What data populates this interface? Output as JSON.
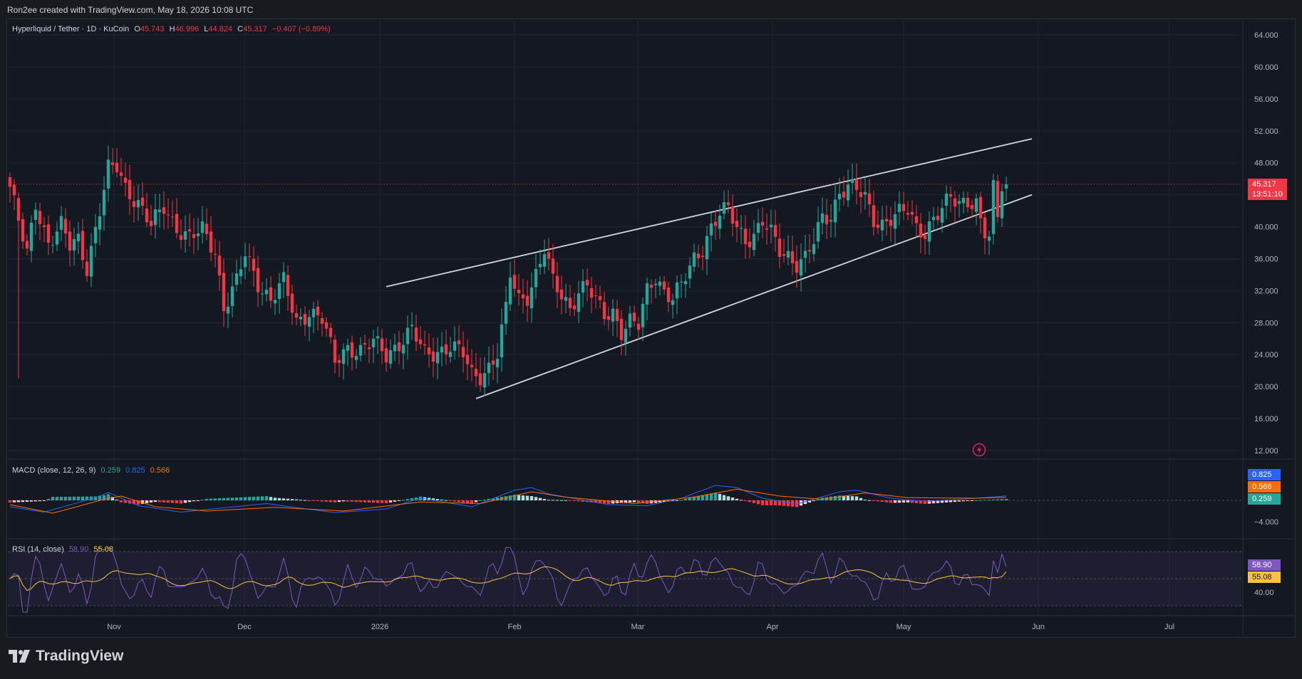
{
  "header": {
    "credit": "Ron2ee created with TradingView.com, May 18, 2026 10:08 UTC"
  },
  "legend": {
    "symbol": "Hyperliquid / Tether · 1D · KuCoin",
    "o_label": "O",
    "o_value": "45.743",
    "h_label": "H",
    "h_value": "46.996",
    "l_label": "L",
    "l_value": "44.824",
    "c_label": "C",
    "c_value": "45.317",
    "change": "−0.407 (−0.89%)"
  },
  "price_tag": {
    "price": "45.317",
    "countdown": "13:51:10"
  },
  "macd": {
    "title": "MACD (close, 12, 26, 9)",
    "hist": "0.259",
    "macd": "0.825",
    "signal": "0.566",
    "axis_label": "−4.000"
  },
  "rsi": {
    "title": "RSI (14, close)",
    "rsi": "58.90",
    "ma": "55.08",
    "axis_label": "40.00"
  },
  "brand": {
    "name": "TradingView"
  },
  "colors": {
    "up": "#26a69a",
    "down": "#f23645",
    "macd": "#2962ff",
    "signal": "#ff6d00",
    "rsi": "#7e57c2",
    "rsi_ma": "#f9c23c",
    "trendline": "#d1d4dc"
  },
  "chart_data": [
    {
      "type": "candlestick",
      "title": "Hyperliquid / Tether · 1D · KuCoin",
      "y_ticks": [
        "64.000",
        "60.000",
        "56.000",
        "52.000",
        "48.000",
        "44.000",
        "40.000",
        "36.000",
        "32.000",
        "28.000",
        "24.000",
        "20.000",
        "16.000",
        "12.000"
      ],
      "ylim": [
        12,
        64
      ],
      "x_ticks": [
        "Nov",
        "Dec",
        "2026",
        "Feb",
        "Mar",
        "Apr",
        "May",
        "Jun",
        "Jul"
      ],
      "anchors_close": [
        [
          0,
          45.0
        ],
        [
          2,
          40.5
        ],
        [
          4,
          36.5
        ],
        [
          6,
          43.0
        ],
        [
          9,
          38.0
        ],
        [
          12,
          40.0
        ],
        [
          14,
          37.5
        ],
        [
          16,
          38.5
        ],
        [
          18,
          35.0
        ],
        [
          21,
          42.0
        ],
        [
          23,
          47.0
        ],
        [
          25,
          47.5
        ],
        [
          27,
          45.0
        ],
        [
          30,
          43.0
        ],
        [
          33,
          40.0
        ],
        [
          36,
          42.5
        ],
        [
          39,
          40.0
        ],
        [
          42,
          38.5
        ],
        [
          45,
          39.5
        ],
        [
          48,
          37.0
        ],
        [
          50,
          30.0
        ],
        [
          53,
          33.0
        ],
        [
          55,
          36.5
        ],
        [
          58,
          33.0
        ],
        [
          61,
          31.0
        ],
        [
          64,
          33.0
        ],
        [
          67,
          28.0
        ],
        [
          70,
          29.5
        ],
        [
          73,
          28.5
        ],
        [
          76,
          23.0
        ],
        [
          79,
          25.0
        ],
        [
          82,
          24.5
        ],
        [
          85,
          25.5
        ],
        [
          88,
          24.0
        ],
        [
          91,
          25.5
        ],
        [
          94,
          27.0
        ],
        [
          97,
          24.0
        ],
        [
          100,
          24.5
        ],
        [
          103,
          25.0
        ],
        [
          106,
          24.0
        ],
        [
          108,
          21.5
        ],
        [
          110,
          21.5
        ],
        [
          112,
          22.5
        ],
        [
          114,
          24.0
        ],
        [
          116,
          29.5
        ],
        [
          117,
          34.0
        ],
        [
          119,
          31.0
        ],
        [
          121,
          31.5
        ],
        [
          123,
          34.0
        ],
        [
          125,
          37.0
        ],
        [
          127,
          33.0
        ],
        [
          129,
          31.5
        ],
        [
          131,
          30.0
        ],
        [
          133,
          32.0
        ],
        [
          135,
          32.5
        ],
        [
          137,
          30.5
        ],
        [
          139,
          29.0
        ],
        [
          141,
          29.5
        ],
        [
          143,
          27.0
        ],
        [
          145,
          28.0
        ],
        [
          147,
          27.5
        ],
        [
          149,
          32.0
        ],
        [
          151,
          34.0
        ],
        [
          153,
          32.0
        ],
        [
          155,
          31.0
        ],
        [
          157,
          32.5
        ],
        [
          160,
          36.0
        ],
        [
          162,
          37.5
        ],
        [
          164,
          40.0
        ],
        [
          166,
          41.5
        ],
        [
          168,
          42.0
        ],
        [
          170,
          40.0
        ],
        [
          172,
          38.5
        ],
        [
          174,
          39.0
        ],
        [
          176,
          40.5
        ],
        [
          178,
          39.0
        ],
        [
          180,
          37.0
        ],
        [
          182,
          36.5
        ],
        [
          184,
          35.5
        ],
        [
          186,
          36.0
        ],
        [
          188,
          38.0
        ],
        [
          190,
          41.0
        ],
        [
          192,
          41.5
        ],
        [
          194,
          44.5
        ],
        [
          196,
          45.0
        ],
        [
          198,
          44.5
        ],
        [
          200,
          43.5
        ],
        [
          202,
          41.0
        ],
        [
          204,
          40.5
        ],
        [
          206,
          41.0
        ],
        [
          208,
          41.5
        ],
        [
          210,
          42.0
        ],
        [
          212,
          40.0
        ],
        [
          214,
          39.5
        ],
        [
          216,
          41.0
        ],
        [
          218,
          42.0
        ],
        [
          220,
          43.5
        ],
        [
          222,
          43.0
        ],
        [
          224,
          43.5
        ],
        [
          226,
          43.0
        ],
        [
          227,
          40.5
        ],
        [
          228,
          39.0
        ],
        [
          229,
          38.5
        ],
        [
          230,
          44.5
        ],
        [
          231,
          41.0
        ],
        [
          232,
          45.4
        ],
        [
          233,
          45.317
        ]
      ],
      "trend_lines": [
        {
          "name": "upper",
          "from": [
            88,
            32.5
          ],
          "to": [
            239,
            51.0
          ]
        },
        {
          "name": "lower",
          "from": [
            109,
            18.5
          ],
          "to": [
            239,
            44.0
          ]
        }
      ],
      "last_price": 45.317
    },
    {
      "type": "line",
      "title": "MACD (close, 12, 26, 9)",
      "series": [
        {
          "name": "MACD",
          "anchors": [
            [
              0,
              -1.2
            ],
            [
              8,
              -2.2
            ],
            [
              20,
              0.5
            ],
            [
              23,
              1.5
            ],
            [
              30,
              -1.0
            ],
            [
              40,
              -2.2
            ],
            [
              50,
              -1.4
            ],
            [
              60,
              -0.6
            ],
            [
              76,
              -2.3
            ],
            [
              88,
              -1.6
            ],
            [
              96,
              0.4
            ],
            [
              108,
              -1.2
            ],
            [
              118,
              1.9
            ],
            [
              122,
              2.4
            ],
            [
              126,
              1.2
            ],
            [
              140,
              -0.8
            ],
            [
              149,
              -1.0
            ],
            [
              157,
              0.4
            ],
            [
              165,
              2.8
            ],
            [
              170,
              2.4
            ],
            [
              176,
              0.4
            ],
            [
              184,
              -0.7
            ],
            [
              194,
              1.6
            ],
            [
              198,
              1.9
            ],
            [
              206,
              0.4
            ],
            [
              214,
              -0.2
            ],
            [
              226,
              0.4
            ],
            [
              233,
              0.825
            ]
          ]
        },
        {
          "name": "Signal",
          "anchors": [
            [
              0,
              -0.8
            ],
            [
              10,
              -2.4
            ],
            [
              22,
              0.2
            ],
            [
              26,
              0.8
            ],
            [
              34,
              -1.2
            ],
            [
              46,
              -2.0
            ],
            [
              62,
              -1.3
            ],
            [
              78,
              -2.0
            ],
            [
              96,
              -0.3
            ],
            [
              110,
              -0.6
            ],
            [
              122,
              1.6
            ],
            [
              130,
              0.6
            ],
            [
              146,
              -0.6
            ],
            [
              160,
              0.6
            ],
            [
              170,
              2.1
            ],
            [
              180,
              0.8
            ],
            [
              190,
              0.2
            ],
            [
              200,
              1.4
            ],
            [
              210,
              0.5
            ],
            [
              226,
              0.4
            ],
            [
              233,
              0.566
            ]
          ]
        },
        {
          "name": "Histogram",
          "last": 0.259
        }
      ]
    },
    {
      "type": "line",
      "title": "RSI (14, close)",
      "bands": [
        70,
        50,
        30
      ],
      "series": [
        {
          "name": "RSI",
          "last": 58.9
        },
        {
          "name": "RSI-based MA",
          "last": 55.08
        }
      ]
    }
  ]
}
